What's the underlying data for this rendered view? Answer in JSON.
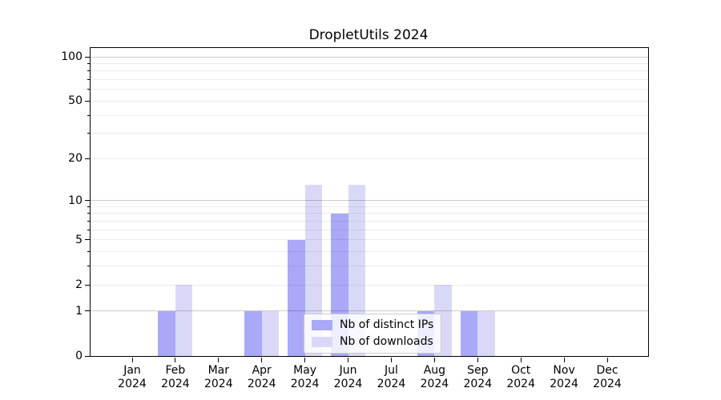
{
  "chart_data": {
    "type": "bar",
    "title": "DropletUtils 2024",
    "categories": [
      "Jan",
      "Feb",
      "Mar",
      "Apr",
      "May",
      "Jun",
      "Jul",
      "Aug",
      "Sep",
      "Oct",
      "Nov",
      "Dec"
    ],
    "x_tick_second_line": "2024",
    "series": [
      {
        "name": "Nb of distinct IPs",
        "color": "#a9a9f7",
        "values": [
          0,
          1,
          0,
          1,
          5,
          8,
          0,
          1,
          1,
          0,
          0,
          0
        ]
      },
      {
        "name": "Nb of downloads",
        "color": "#d9d9f7",
        "values": [
          0,
          2,
          0,
          1,
          13,
          13,
          0,
          2,
          1,
          0,
          0,
          0
        ]
      }
    ],
    "xlabel": "",
    "ylabel": "",
    "y_scale": "log10(1+value)",
    "ylim": [
      0,
      114.7
    ],
    "y_ticks": [
      0,
      1,
      2,
      5,
      10,
      20,
      50,
      100
    ],
    "y_minor_gridlines": [
      3,
      4,
      6,
      7,
      8,
      9,
      30,
      40,
      60,
      70,
      80,
      90
    ],
    "y_decade_gridlines": [
      1,
      10,
      100
    ],
    "grid": true,
    "legend_position": "lower center",
    "colors": {
      "background": "#ffffff",
      "axis": "#000000",
      "grid_decade": "rgba(0,0,0,0.20)",
      "grid_minor": "rgba(0,0,0,0.08)",
      "legend_border": "#cccccc",
      "legend_background": "rgba(255,255,255,0.8)"
    }
  }
}
